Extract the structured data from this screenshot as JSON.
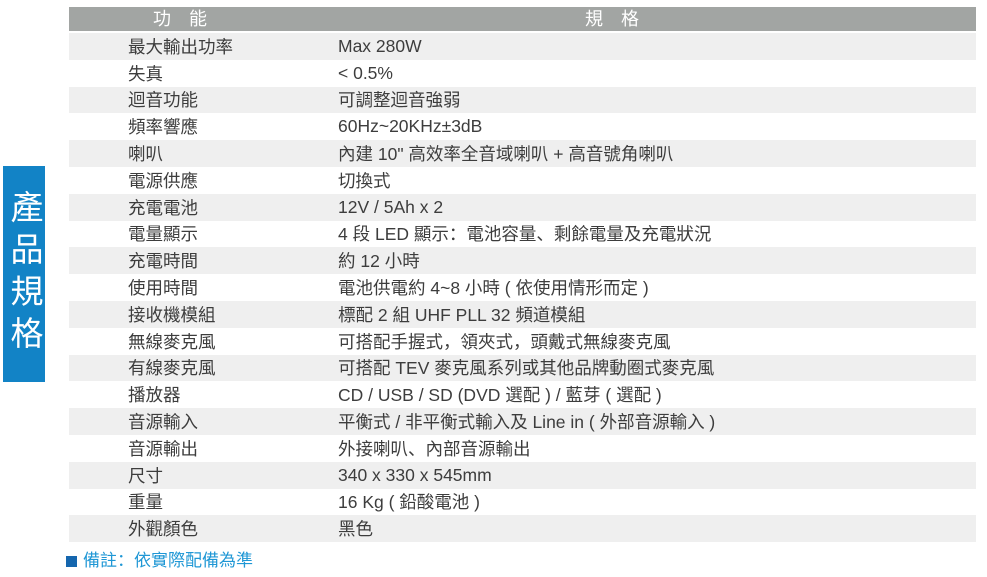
{
  "side_tab": {
    "label": "產品規格"
  },
  "table": {
    "headers": {
      "function": "功　能",
      "spec": "規　格"
    },
    "rows": [
      {
        "label": "最大輸出功率",
        "value": "Max 280W"
      },
      {
        "label": "失真",
        "value": "< 0.5%"
      },
      {
        "label": "迴音功能",
        "value": "可調整迴音強弱"
      },
      {
        "label": "頻率響應",
        "value": "60Hz~20KHz±3dB"
      },
      {
        "label": "喇叭",
        "value": "內建 10\" 高效率全音域喇叭 + 高音號角喇叭"
      },
      {
        "label": "電源供應",
        "value": "切換式"
      },
      {
        "label": "充電電池",
        "value": "12V / 5Ah x 2"
      },
      {
        "label": "電量顯示",
        "value": "4 段 LED 顯示：電池容量、剩餘電量及充電狀況"
      },
      {
        "label": "充電時間",
        "value": "約 12 小時"
      },
      {
        "label": "使用時間",
        "value": "電池供電約 4~8 小時 ( 依使用情形而定 )"
      },
      {
        "label": "接收機模組",
        "value": "標配 2 組 UHF PLL 32 頻道模組"
      },
      {
        "label": "無線麥克風",
        "value": "可搭配手握式，領夾式，頭戴式無線麥克風"
      },
      {
        "label": "有線麥克風",
        "value": "可搭配 TEV 麥克風系列或其他品牌動圈式麥克風"
      },
      {
        "label": "播放器",
        "value": "CD / USB / SD (DVD 選配 ) / 藍芽 ( 選配 )"
      },
      {
        "label": "音源輸入",
        "value": "平衡式 / 非平衡式輸入及 Line in ( 外部音源輸入 )"
      },
      {
        "label": "音源輸出",
        "value": "外接喇叭、內部音源輸出"
      },
      {
        "label": "尺寸",
        "value": "340 x 330 x 545mm"
      },
      {
        "label": "重量",
        "value": "16 Kg ( 鉛酸電池 )"
      },
      {
        "label": "外觀顏色",
        "value": "黑色"
      }
    ]
  },
  "note": {
    "text": "備註：依實際配備為準"
  },
  "colors": {
    "header_bg": "#a2a5a3",
    "row_stripe": "#efefef",
    "body_text": "#3d3d3d",
    "side_tab_bg": "#1283c6",
    "note_text": "#1f97d5",
    "note_bullet": "#1566ae"
  }
}
